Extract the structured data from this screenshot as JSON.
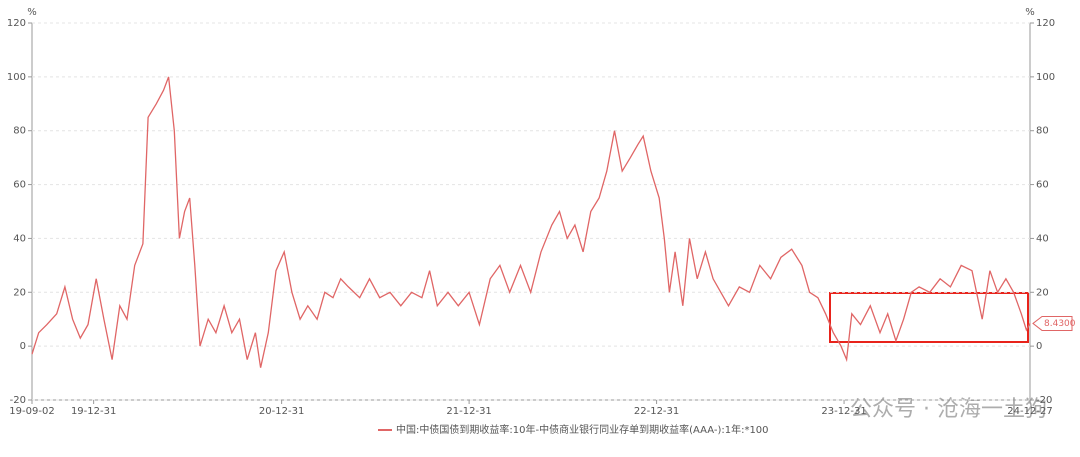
{
  "chart_data": {
    "type": "line",
    "y_unit": "%",
    "y2_unit": "%",
    "x": [
      "19-09-02",
      "19-09-15",
      "19-10-01",
      "19-10-20",
      "19-11-05",
      "19-11-20",
      "19-12-05",
      "19-12-20",
      "20-01-05",
      "20-01-20",
      "20-02-05",
      "20-02-20",
      "20-03-05",
      "20-03-20",
      "20-04-05",
      "20-04-15",
      "20-05-01",
      "20-05-15",
      "20-05-25",
      "20-06-05",
      "20-06-15",
      "20-06-25",
      "20-07-05",
      "20-07-15",
      "20-07-25",
      "20-08-10",
      "20-08-25",
      "20-09-10",
      "20-09-25",
      "20-10-10",
      "20-10-25",
      "20-11-10",
      "20-11-20",
      "20-12-05",
      "20-12-20",
      "21-01-05",
      "21-01-20",
      "21-02-05",
      "21-02-20",
      "21-03-10",
      "21-03-25",
      "21-04-10",
      "21-04-25",
      "21-05-10",
      "21-06-01",
      "21-06-20",
      "21-07-10",
      "21-07-30",
      "21-08-20",
      "21-09-10",
      "21-09-30",
      "21-10-15",
      "21-10-30",
      "21-11-20",
      "21-12-10",
      "21-12-31",
      "22-01-20",
      "22-02-10",
      "22-03-01",
      "22-03-20",
      "22-04-10",
      "22-04-30",
      "22-05-20",
      "22-06-10",
      "22-06-25",
      "22-07-10",
      "22-07-25",
      "22-08-10",
      "22-08-25",
      "22-09-10",
      "22-09-25",
      "22-10-10",
      "22-10-25",
      "22-11-10",
      "22-11-25",
      "22-12-05",
      "22-12-20",
      "23-01-05",
      "23-01-15",
      "23-01-25",
      "23-02-05",
      "23-02-20",
      "23-03-05",
      "23-03-20",
      "23-04-05",
      "23-04-20",
      "23-05-05",
      "23-05-20",
      "23-06-10",
      "23-06-30",
      "23-07-20",
      "23-08-10",
      "23-08-30",
      "23-09-20",
      "23-10-10",
      "23-10-25",
      "23-11-10",
      "23-11-25",
      "23-12-10",
      "23-12-25",
      "24-01-05",
      "24-01-15",
      "24-02-01",
      "24-02-20",
      "24-03-10",
      "24-03-25",
      "24-04-10",
      "24-04-25",
      "24-05-10",
      "24-05-25",
      "24-06-15",
      "24-07-05",
      "24-07-25",
      "24-08-15",
      "24-09-05",
      "24-09-25",
      "24-10-10",
      "24-10-25",
      "24-11-10",
      "24-11-25",
      "24-12-10",
      "24-12-20",
      "24-12-27"
    ],
    "series": [
      {
        "name": "中国:中债国债到期收益率:10年-中债商业银行同业存单到期收益率(AAA-):1年:*100",
        "color": "#e06666",
        "values": [
          -3,
          5,
          8,
          12,
          22,
          10,
          3,
          8,
          25,
          10,
          -5,
          15,
          10,
          30,
          38,
          85,
          90,
          95,
          100,
          80,
          40,
          50,
          55,
          30,
          0,
          10,
          5,
          15,
          5,
          10,
          -5,
          5,
          -8,
          5,
          28,
          35,
          20,
          10,
          15,
          10,
          20,
          18,
          25,
          22,
          18,
          25,
          18,
          20,
          15,
          20,
          18,
          28,
          15,
          20,
          15,
          20,
          8,
          25,
          30,
          20,
          30,
          20,
          35,
          45,
          50,
          40,
          45,
          35,
          50,
          55,
          65,
          80,
          65,
          70,
          75,
          78,
          65,
          55,
          40,
          20,
          35,
          15,
          40,
          25,
          35,
          25,
          20,
          15,
          22,
          20,
          30,
          25,
          33,
          36,
          30,
          20,
          18,
          12,
          5,
          0,
          -5,
          12,
          8,
          15,
          5,
          12,
          2,
          10,
          20,
          22,
          20,
          25,
          22,
          30,
          28,
          10,
          28,
          20,
          25,
          20,
          12,
          6,
          8.43
        ]
      }
    ],
    "annotations": [
      {
        "x": "24-12-27",
        "y": 8.43,
        "label": "8.4300"
      }
    ],
    "xlim": [
      "19-09-02",
      "24-12-27"
    ],
    "xticks": [
      "19-09-02",
      "19-12-31",
      "20-12-31",
      "21-12-31",
      "22-12-31",
      "23-12-31",
      "24-12-27"
    ],
    "ylim": [
      -20,
      120
    ],
    "yticks": [
      -20,
      0,
      20,
      40,
      60,
      80,
      100,
      120
    ],
    "y2lim": [
      -20,
      120
    ],
    "y2ticks": [
      -20,
      0,
      20,
      40,
      60,
      80,
      100,
      120
    ],
    "grid": true,
    "watermark": "公众号 · 沧海一土狗"
  }
}
